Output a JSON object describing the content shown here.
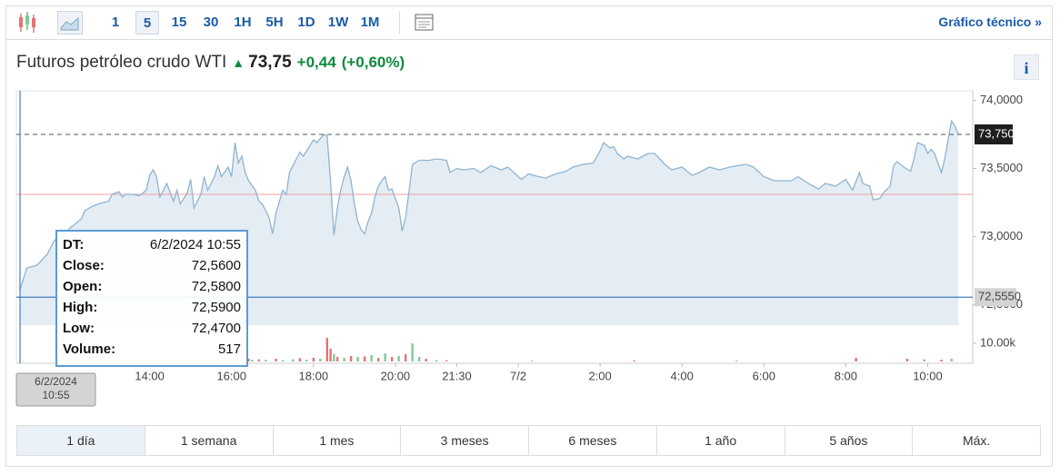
{
  "toolbar": {
    "intervals": [
      "1",
      "5",
      "15",
      "30",
      "1H",
      "5H",
      "1D",
      "1W",
      "1M"
    ],
    "selected": 1,
    "technical_link": "Gráfico técnico »"
  },
  "header": {
    "title": "Futuros petróleo crudo WTI",
    "price": "73,75",
    "change": "+0,44",
    "change_pct": "(+0,60%)",
    "info": "i"
  },
  "chart_data": {
    "type": "area",
    "series": [
      {
        "color": "#8fb4d0",
        "fill": "#e4edf4",
        "x": [
          0,
          2,
          5,
          8,
          10,
          13,
          15,
          18,
          19,
          21,
          23,
          26,
          27,
          29,
          30,
          31,
          33,
          35,
          37,
          38,
          39,
          40,
          41,
          42,
          43,
          45,
          46,
          47,
          49,
          50,
          51,
          53,
          54,
          55,
          57,
          58,
          59,
          61,
          62,
          63,
          64,
          65,
          66,
          67,
          69,
          70,
          71,
          73,
          74,
          75,
          77,
          78,
          79,
          81,
          82,
          83,
          85,
          86,
          87,
          89,
          90,
          91,
          92,
          93,
          94,
          95,
          96,
          97,
          98,
          99,
          100,
          101,
          102,
          103,
          104,
          105,
          106,
          107,
          108,
          109,
          111,
          112,
          113,
          115,
          117,
          120,
          122,
          125,
          126,
          128,
          130,
          133,
          135,
          138,
          141,
          143,
          146,
          147,
          149,
          152,
          154,
          157,
          160,
          162,
          165,
          168,
          170,
          171,
          173,
          174,
          175,
          177,
          178,
          181,
          184,
          186,
          189,
          191,
          194,
          197,
          199,
          202,
          205,
          208,
          210,
          213,
          215,
          218,
          221,
          223,
          226,
          228,
          231,
          234,
          236,
          239,
          242,
          244,
          246,
          247,
          249,
          250,
          252,
          253,
          255,
          256,
          257,
          259,
          261,
          262,
          263,
          265,
          266,
          267,
          268,
          270,
          271,
          273,
          274,
          275
        ],
        "values": [
          72.61,
          72.77,
          72.79,
          72.87,
          72.97,
          73.02,
          73.07,
          73.13,
          73.19,
          73.22,
          73.24,
          73.26,
          73.31,
          73.33,
          73.29,
          73.31,
          73.31,
          73.3,
          73.34,
          73.45,
          73.49,
          73.44,
          73.29,
          73.34,
          73.39,
          73.26,
          73.34,
          73.24,
          73.32,
          73.42,
          73.21,
          73.31,
          73.44,
          73.34,
          73.44,
          73.52,
          73.44,
          73.51,
          73.44,
          73.69,
          73.54,
          73.59,
          73.47,
          73.41,
          73.34,
          73.26,
          73.24,
          73.14,
          73.02,
          73.17,
          73.34,
          73.31,
          73.47,
          73.57,
          73.62,
          73.59,
          73.67,
          73.71,
          73.69,
          73.75,
          73.74,
          73.41,
          73.01,
          73.21,
          73.34,
          73.44,
          73.51,
          73.41,
          73.24,
          73.11,
          73.05,
          73.02,
          73.11,
          73.17,
          73.29,
          73.37,
          73.41,
          73.44,
          73.34,
          73.35,
          73.21,
          73.04,
          73.14,
          73.53,
          73.56,
          73.56,
          73.57,
          73.56,
          73.47,
          73.5,
          73.49,
          73.5,
          73.47,
          73.52,
          73.49,
          73.51,
          73.44,
          73.42,
          73.46,
          73.44,
          73.43,
          73.46,
          73.48,
          73.51,
          73.53,
          73.54,
          73.63,
          73.69,
          73.65,
          73.66,
          73.61,
          73.57,
          73.59,
          73.57,
          73.61,
          73.61,
          73.53,
          73.49,
          73.51,
          73.45,
          73.47,
          73.51,
          73.49,
          73.51,
          73.52,
          73.53,
          73.51,
          73.44,
          73.41,
          73.41,
          73.41,
          73.44,
          73.39,
          73.35,
          73.39,
          73.37,
          73.42,
          73.34,
          73.47,
          73.39,
          73.37,
          73.27,
          73.28,
          73.32,
          73.37,
          73.52,
          73.55,
          73.51,
          73.48,
          73.57,
          73.69,
          73.67,
          73.61,
          73.64,
          73.61,
          73.47,
          73.57,
          73.85,
          73.81,
          73.75
        ]
      }
    ],
    "xlim": [
      0,
      276
    ],
    "xticks": [
      {
        "value": 38,
        "label": "14:00"
      },
      {
        "value": 62,
        "label": "16:00"
      },
      {
        "value": 86,
        "label": "18:00"
      },
      {
        "value": 110,
        "label": "20:00"
      },
      {
        "value": 128,
        "label": "21:30"
      },
      {
        "value": 146,
        "label": "7/2"
      },
      {
        "value": 170,
        "label": "2:00"
      },
      {
        "value": 194,
        "label": "4:00"
      },
      {
        "value": 218,
        "label": "6:00"
      },
      {
        "value": 242,
        "label": "8:00"
      },
      {
        "value": 266,
        "label": "10:00"
      }
    ],
    "ylim": [
      72.35,
      74.07
    ],
    "yticks": [
      {
        "value": 74,
        "label": "74,0000"
      },
      {
        "value": 73.5,
        "label": "73,5000"
      },
      {
        "value": 73,
        "label": "73,0000"
      },
      {
        "value": 72.5,
        "label": "72,5000"
      }
    ],
    "last_price": {
      "value": 73.75,
      "label": "73,7500"
    },
    "prev_close": 73.31,
    "prev_close_color": "#f0a0a0",
    "crosshair": {
      "x": 0,
      "y": {
        "value": 72.555,
        "label": "72,5550"
      },
      "x_label": [
        "6/2/2024",
        "10:55"
      ],
      "color": "#3f7fc0"
    },
    "volume": {
      "ylim": [
        0,
        20000
      ],
      "yticks": [
        {
          "value": 10000,
          "label": "10.00k"
        }
      ],
      "x": [
        67,
        68,
        70,
        72,
        75,
        77,
        80,
        82,
        84,
        86,
        88,
        90,
        91,
        92,
        93,
        95,
        97,
        99,
        101,
        103,
        105,
        107,
        109,
        111,
        113,
        115,
        117,
        119,
        122,
        125,
        150,
        180,
        210,
        245,
        260,
        265,
        270,
        273
      ],
      "values": [
        1500,
        1000,
        1200,
        900,
        1500,
        800,
        1200,
        1800,
        1000,
        2000,
        1500,
        13000,
        7000,
        4000,
        2500,
        2000,
        3000,
        2500,
        2800,
        3500,
        2000,
        4500,
        2500,
        3000,
        4000,
        10000,
        2500,
        1500,
        800,
        700,
        500,
        600,
        500,
        2000,
        1500,
        1200,
        1000,
        1500
      ],
      "colors": [
        "#e57373",
        "#81c995",
        "#e57373",
        "#81c995",
        "#e57373",
        "#81c995",
        "#81c995",
        "#e57373",
        "#81c995",
        "#e57373",
        "#81c995",
        "#e57373",
        "#e57373",
        "#81c995",
        "#e57373",
        "#81c995",
        "#e57373",
        "#81c995",
        "#e57373",
        "#81c995",
        "#e57373",
        "#81c995",
        "#e57373",
        "#81c995",
        "#e57373",
        "#81c995",
        "#81c995",
        "#e57373",
        "#81c995",
        "#e57373",
        "#81c995",
        "#e57373",
        "#81c995",
        "#e57373",
        "#e57373",
        "#81c995",
        "#e57373",
        "#81c995"
      ]
    },
    "tooltip": {
      "rows": [
        [
          "DT:",
          "6/2/2024 10:55"
        ],
        [
          "Close:",
          "72,5600"
        ],
        [
          "Open:",
          "72,5800"
        ],
        [
          "High:",
          "72,5900"
        ],
        [
          "Low:",
          "72,4700"
        ],
        [
          "Volume:",
          "517"
        ]
      ]
    }
  },
  "range_tabs": {
    "items": [
      "1 día",
      "1 semana",
      "1 mes",
      "3 meses",
      "6 meses",
      "1 año",
      "5 años",
      "Máx."
    ],
    "selected": 0
  }
}
